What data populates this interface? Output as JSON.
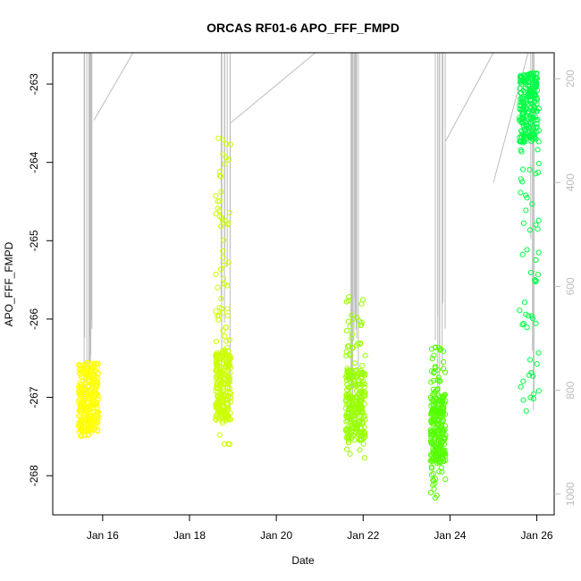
{
  "chart_data": {
    "type": "scatter",
    "title": "ORCAS RF01-6 APO_FFF_FMPD",
    "xlabel": "Date",
    "ylabel": "APO_FFF_FMPD",
    "x_ticks": [
      "Jan 16",
      "Jan 18",
      "Jan 20",
      "Jan 22",
      "Jan 24",
      "Jan 26"
    ],
    "y_ticks": [
      "-263",
      "-264",
      "-265",
      "-266",
      "-267",
      "-268"
    ],
    "y2_ticks": [
      "200",
      "400",
      "600",
      "800",
      "1000"
    ],
    "xlim_days_jan": [
      14.85,
      26.4
    ],
    "ylim": [
      -268.5,
      -262.6
    ],
    "y2lim": [
      1040,
      150
    ],
    "grid": false,
    "legend": "none",
    "colors": {
      "axis": "#000000",
      "secondary": "#bdbdbd",
      "flights": [
        "#ffff00",
        "#ccff00",
        "#99ff00",
        "#55ff00",
        "#00ff44"
      ]
    },
    "series": [
      {
        "x": [
          15.45,
          15.9
        ],
        "y_min": -267.5,
        "y_max": -266.55,
        "y_center": -267.0,
        "color": "#ffff00"
      },
      {
        "x": [
          18.6,
          18.95
        ],
        "y_min": -267.6,
        "y_max": -263.6,
        "y_center": -266.85,
        "color": "#ccff00"
      },
      {
        "x": [
          21.6,
          22.05
        ],
        "y_min": -267.85,
        "y_max": -265.7,
        "y_center": -267.1,
        "color": "#99ff00"
      },
      {
        "x": [
          23.55,
          23.9
        ],
        "y_min": -268.3,
        "y_max": -266.35,
        "y_center": -267.4,
        "color": "#55ff00"
      },
      {
        "x": [
          25.6,
          26.05
        ],
        "y_min": -267.2,
        "y_max": -262.8,
        "y_center": -263.3,
        "color": "#00ff44"
      }
    ]
  }
}
